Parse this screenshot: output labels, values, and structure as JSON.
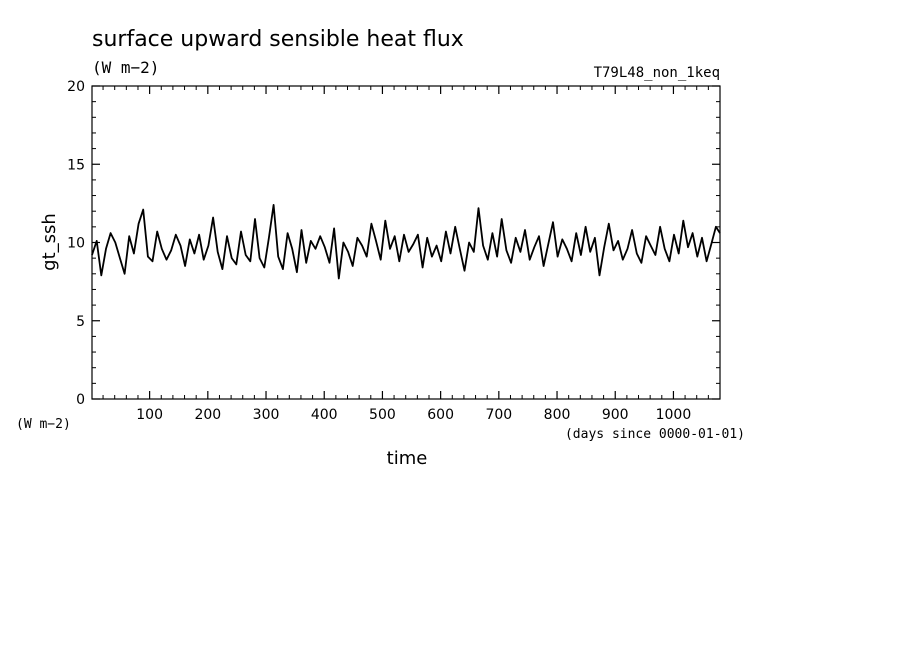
{
  "title": "surface upward sensible heat flux",
  "units": "(W m−2)",
  "run_label": "T79L48_non_1keq",
  "y_unit_label": "(W m−2)",
  "x_unit_label": "(days since 0000-01-01)",
  "colors": {
    "line": "#000000",
    "background": "#ffffff"
  },
  "chart_data": {
    "type": "line",
    "title": "surface upward sensible heat flux",
    "xlabel": "time",
    "ylabel": "gt_ssh",
    "xlim": [
      1,
      1080
    ],
    "ylim": [
      0,
      20
    ],
    "x_ticks": [
      100,
      200,
      300,
      400,
      500,
      600,
      700,
      800,
      900,
      1000
    ],
    "x_tick_labels": [
      "100",
      "200",
      "300",
      "400",
      "500",
      "600",
      "700",
      "800",
      "900",
      "1000"
    ],
    "y_ticks": [
      0,
      5,
      10,
      15,
      20
    ],
    "y_tick_labels": [
      "0",
      "5",
      "10",
      "15",
      "20"
    ],
    "grid": false,
    "legend": "none",
    "series": [
      {
        "x": [
          1,
          9,
          17,
          25,
          33,
          41,
          49,
          57,
          65,
          73,
          81,
          89,
          97,
          105,
          113,
          121,
          129,
          137,
          145,
          153,
          161,
          169,
          177,
          185,
          193,
          201,
          209,
          217,
          225,
          233,
          241,
          249,
          257,
          265,
          273,
          281,
          289,
          297,
          305,
          313,
          321,
          329,
          337,
          345,
          353,
          361,
          369,
          377,
          385,
          393,
          401,
          409,
          417,
          425,
          433,
          441,
          449,
          457,
          465,
          473,
          481,
          489,
          497,
          505,
          513,
          521,
          529,
          537,
          545,
          553,
          561,
          569,
          577,
          585,
          593,
          601,
          609,
          617,
          625,
          633,
          641,
          649,
          657,
          665,
          673,
          681,
          689,
          697,
          705,
          713,
          721,
          729,
          737,
          745,
          753,
          761,
          769,
          777,
          785,
          793,
          801,
          809,
          817,
          825,
          833,
          841,
          849,
          857,
          865,
          873,
          881,
          889,
          897,
          905,
          913,
          921,
          929,
          937,
          945,
          953,
          961,
          969,
          977,
          985,
          993,
          1001,
          1009,
          1017,
          1025,
          1033,
          1041,
          1049,
          1057,
          1065,
          1073,
          1080
        ],
        "values": [
          9.2,
          10.1,
          7.9,
          9.6,
          10.6,
          10.0,
          9.0,
          8.0,
          10.4,
          9.3,
          11.2,
          12.1,
          9.1,
          8.8,
          10.7,
          9.6,
          8.9,
          9.5,
          10.5,
          9.8,
          8.5,
          10.2,
          9.3,
          10.5,
          8.9,
          9.8,
          11.6,
          9.4,
          8.3,
          10.4,
          9.0,
          8.6,
          10.7,
          9.2,
          8.8,
          11.5,
          9.0,
          8.4,
          10.3,
          12.4,
          9.1,
          8.3,
          10.6,
          9.6,
          8.1,
          10.8,
          8.7,
          10.1,
          9.6,
          10.4,
          9.7,
          8.7,
          10.9,
          7.7,
          10.0,
          9.4,
          8.5,
          10.3,
          9.8,
          9.1,
          11.2,
          10.1,
          8.9,
          11.4,
          9.6,
          10.4,
          8.8,
          10.5,
          9.4,
          9.9,
          10.5,
          8.4,
          10.3,
          9.1,
          9.8,
          8.8,
          10.7,
          9.3,
          11.0,
          9.6,
          8.2,
          10.0,
          9.4,
          12.2,
          9.8,
          8.9,
          10.6,
          9.1,
          11.5,
          9.5,
          8.7,
          10.3,
          9.4,
          10.8,
          8.9,
          9.7,
          10.4,
          8.5,
          9.9,
          11.3,
          9.1,
          10.2,
          9.6,
          8.8,
          10.6,
          9.2,
          11.0,
          9.4,
          10.3,
          7.9,
          9.7,
          11.2,
          9.5,
          10.1,
          8.9,
          9.6,
          10.8,
          9.3,
          8.7,
          10.4,
          9.8,
          9.2,
          11.0,
          9.6,
          8.8,
          10.5,
          9.3,
          11.4,
          9.7,
          10.6,
          9.1,
          10.3,
          8.8,
          9.9,
          11.0,
          10.6
        ]
      }
    ]
  }
}
